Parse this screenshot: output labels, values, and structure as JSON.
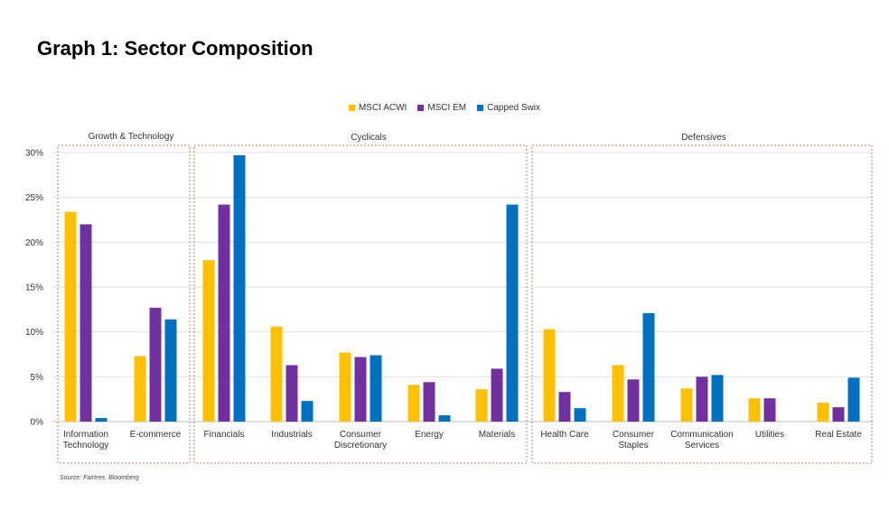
{
  "page_title": "Graph 1: Sector Composition",
  "source_note": "Source: Fairtree, Bloomberg",
  "colors": {
    "MSCI ACWI": "#FFC000",
    "MSCI EM": "#7030A0",
    "Capped Swix": "#0070C0",
    "group_border": "#C0806A",
    "grid": "#E0E0E0"
  },
  "chart_data": {
    "type": "bar",
    "title": "",
    "xlabel": "",
    "ylabel": "",
    "ylim": [
      0,
      30
    ],
    "yticks": [
      "0%",
      "5%",
      "10%",
      "15%",
      "20%",
      "25%",
      "30%"
    ],
    "grid": true,
    "legend_position": "top-center",
    "categories": [
      "Information Technology",
      "E-commerce",
      "Financials",
      "Industrials",
      "Consumer Discretionary",
      "Energy",
      "Materials",
      "Health Care",
      "Consumer Staples",
      "Communication Services",
      "Utilities",
      "Real Estate"
    ],
    "category_lines": [
      [
        "Information",
        "Technology"
      ],
      [
        "E-commerce"
      ],
      [
        "Financials"
      ],
      [
        "Industrials"
      ],
      [
        "Consumer",
        "Discretionary"
      ],
      [
        "Energy"
      ],
      [
        "Materials"
      ],
      [
        "Health Care"
      ],
      [
        "Consumer",
        "Staples"
      ],
      [
        "Communication",
        "Services"
      ],
      [
        "Utilities"
      ],
      [
        "Real Estate"
      ]
    ],
    "groups": [
      {
        "name": "Growth & Technology",
        "categories": [
          "Information Technology",
          "E-commerce"
        ]
      },
      {
        "name": "Cyclicals",
        "categories": [
          "Financials",
          "Industrials",
          "Consumer Discretionary",
          "Energy",
          "Materials"
        ]
      },
      {
        "name": "Defensives",
        "categories": [
          "Health Care",
          "Consumer Staples",
          "Communication Services",
          "Utilities",
          "Real Estate"
        ]
      }
    ],
    "series": [
      {
        "name": "MSCI ACWI",
        "values": [
          23.4,
          7.3,
          18.0,
          10.6,
          7.7,
          4.1,
          3.6,
          10.3,
          6.3,
          3.7,
          2.6,
          2.1
        ]
      },
      {
        "name": "MSCI EM",
        "values": [
          22.0,
          12.7,
          24.2,
          6.3,
          7.2,
          4.4,
          5.9,
          3.3,
          4.7,
          5.0,
          2.6,
          1.6
        ]
      },
      {
        "name": "Capped Swix",
        "values": [
          0.4,
          11.4,
          29.7,
          2.3,
          7.4,
          0.7,
          24.2,
          1.5,
          12.1,
          5.2,
          0.0,
          4.9
        ]
      }
    ]
  }
}
